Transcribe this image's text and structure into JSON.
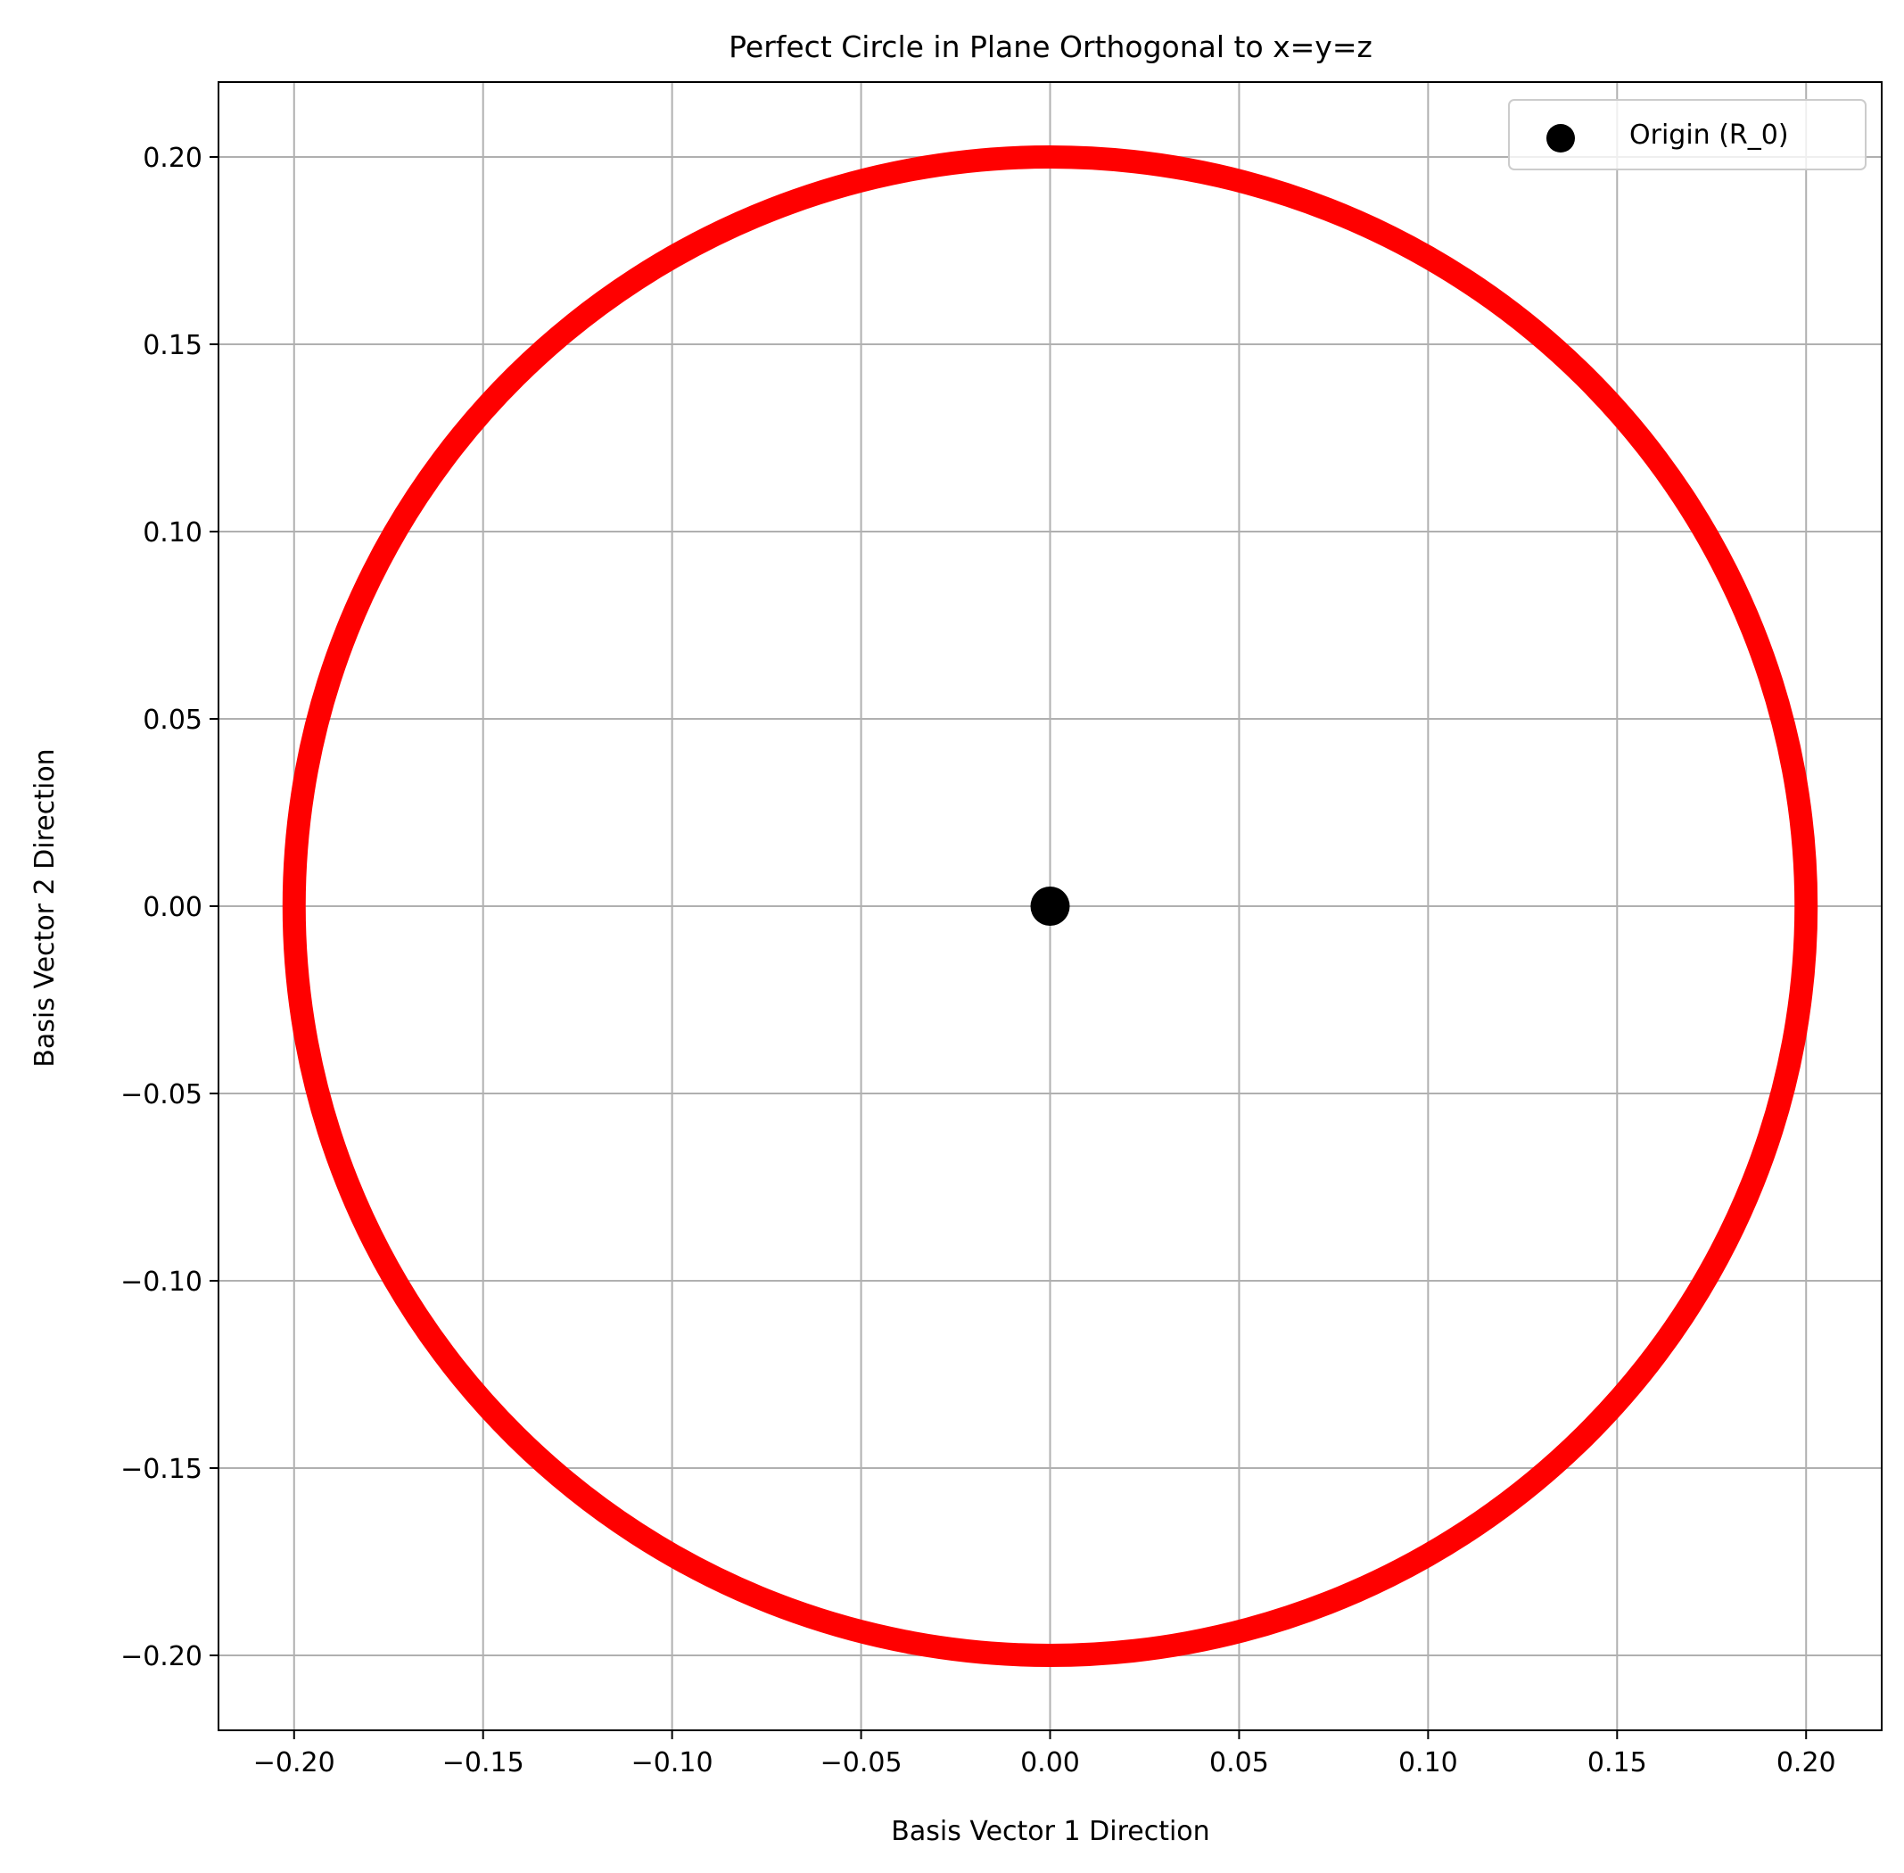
{
  "chart_data": {
    "type": "scatter",
    "title": "Perfect Circle in Plane Orthogonal to x=y=z",
    "xlabel": "Basis Vector 1 Direction",
    "ylabel": "Basis Vector 2 Direction",
    "xlim": [
      -0.22,
      0.22
    ],
    "ylim": [
      -0.22,
      0.22
    ],
    "grid": true,
    "legend_position": "top-right",
    "x_ticks": [
      -0.2,
      -0.15,
      -0.1,
      -0.05,
      0.0,
      0.05,
      0.1,
      0.15,
      0.2
    ],
    "x_tick_labels": [
      "−0.20",
      "−0.15",
      "−0.10",
      "−0.05",
      "0.00",
      "0.05",
      "0.10",
      "0.15",
      "0.20"
    ],
    "y_ticks": [
      -0.2,
      -0.15,
      -0.1,
      -0.05,
      0.0,
      0.05,
      0.1,
      0.15,
      0.2
    ],
    "y_tick_labels": [
      "−0.20",
      "−0.15",
      "−0.10",
      "−0.05",
      "0.00",
      "0.05",
      "0.10",
      "0.15",
      "0.20"
    ],
    "series": [
      {
        "kind": "circle",
        "center": [
          0.0,
          0.0
        ],
        "radius": 0.2,
        "color": "#ff0000"
      },
      {
        "name": "Origin (R_0)",
        "kind": "point",
        "x": [
          0.0
        ],
        "y": [
          0.0
        ],
        "color": "#000000"
      }
    ]
  }
}
